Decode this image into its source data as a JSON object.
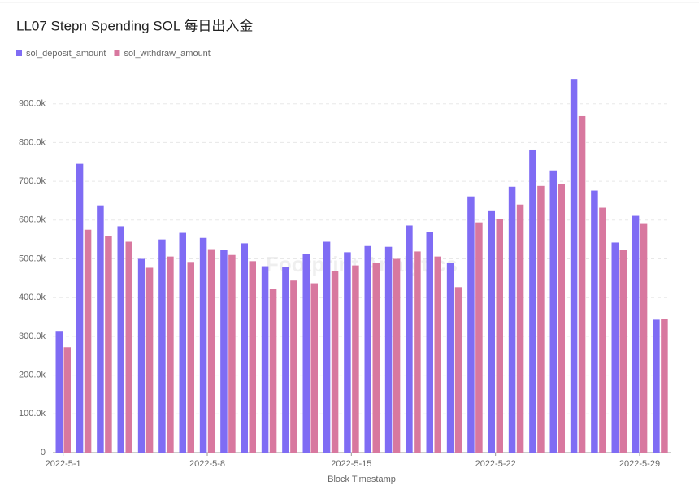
{
  "chart_data": {
    "type": "bar",
    "title": "LL07 Stepn Spending SOL 每日出入金",
    "watermark": "Footprint Analytics",
    "x_label": "Block Timestamp",
    "categories": [
      "2022-5-1",
      null,
      null,
      null,
      null,
      null,
      null,
      "2022-5-8",
      null,
      null,
      null,
      null,
      null,
      null,
      "2022-5-15",
      null,
      null,
      null,
      null,
      null,
      null,
      "2022-5-22",
      null,
      null,
      null,
      null,
      null,
      null,
      "2022-5-29",
      null
    ],
    "series": [
      {
        "name": "sol_deposit_amount",
        "color": "#7f6cf4",
        "values": [
          314000,
          745000,
          638000,
          584000,
          500000,
          550000,
          567000,
          554000,
          523000,
          540000,
          481000,
          479000,
          513000,
          544000,
          517000,
          533000,
          531000,
          586000,
          569000,
          490000,
          661000,
          623000,
          686000,
          782000,
          728000,
          964000,
          676000,
          542000,
          611000,
          343000
        ]
      },
      {
        "name": "sol_withdraw_amount",
        "color": "#d8789f",
        "values": [
          272000,
          575000,
          559000,
          544000,
          477000,
          506000,
          492000,
          525000,
          510000,
          494000,
          423000,
          444000,
          437000,
          469000,
          483000,
          490000,
          500000,
          519000,
          506000,
          427000,
          594000,
          603000,
          640000,
          688000,
          692000,
          868000,
          632000,
          523000,
          590000,
          345000
        ]
      }
    ],
    "ylim": [
      0,
      1000000
    ],
    "yticks": [
      0,
      {
        "value": 100000,
        "label": "100.0k"
      },
      {
        "value": 200000,
        "label": "200.0k"
      },
      {
        "value": 300000,
        "label": "300.0k"
      },
      {
        "value": 400000,
        "label": "400.0k"
      },
      {
        "value": 500000,
        "label": "500.0k"
      },
      {
        "value": 600000,
        "label": "600.0k"
      },
      {
        "value": 700000,
        "label": "700.0k"
      },
      {
        "value": 800000,
        "label": "800.0k"
      },
      {
        "value": 900000,
        "label": "900.0k"
      }
    ],
    "grid": true
  }
}
